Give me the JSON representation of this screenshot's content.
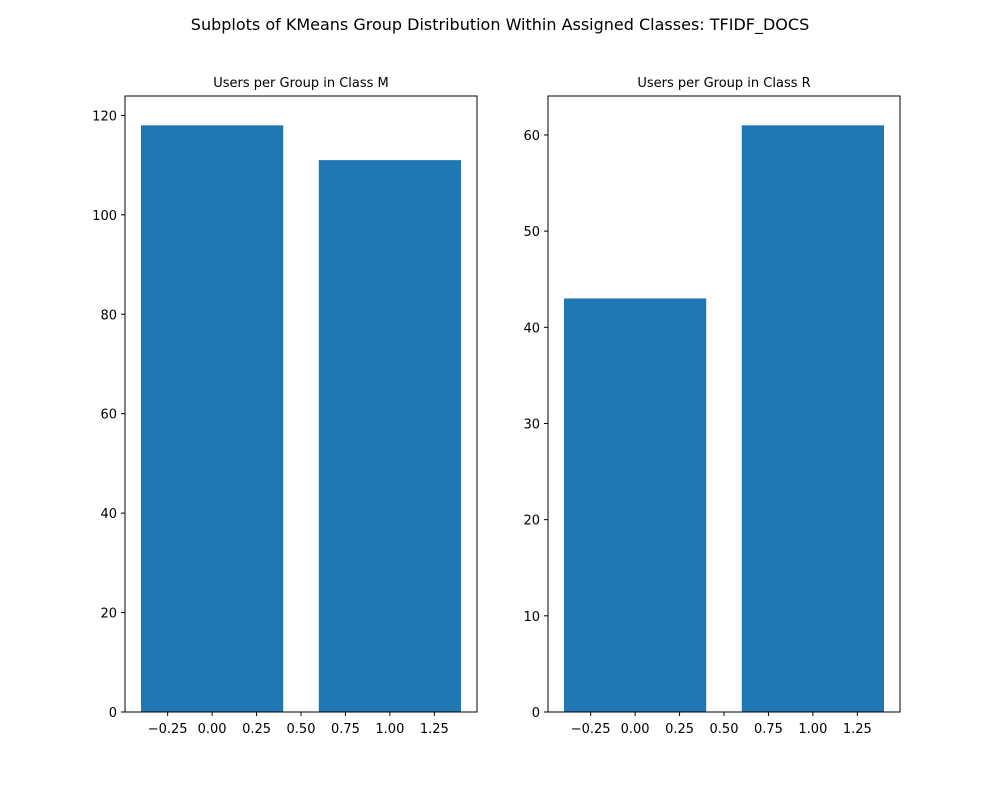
{
  "figure_title": "Subplots of KMeans Group Distribution Within Assigned Classes: TFIDF_DOCS",
  "chart_data": [
    {
      "type": "bar",
      "title": "Users per Group in Class M",
      "xlabel": "",
      "ylabel": "",
      "x": [
        0,
        1
      ],
      "values": [
        118,
        111
      ],
      "bar_width": 0.8,
      "xlim": [
        -0.49,
        1.49
      ],
      "ylim": [
        0,
        123.9
      ],
      "xticks": [
        -0.25,
        0.0,
        0.25,
        0.5,
        0.75,
        1.0,
        1.25
      ],
      "xtick_labels": [
        "−0.25",
        "0.00",
        "0.25",
        "0.50",
        "0.75",
        "1.00",
        "1.25"
      ],
      "yticks": [
        0,
        20,
        40,
        60,
        80,
        100,
        120
      ],
      "ytick_labels": [
        "0",
        "20",
        "40",
        "60",
        "80",
        "100",
        "120"
      ],
      "color": "#1f77b4",
      "grid": false,
      "legend": "none"
    },
    {
      "type": "bar",
      "title": "Users per Group in Class R",
      "xlabel": "",
      "ylabel": "",
      "x": [
        0,
        1
      ],
      "values": [
        43,
        61
      ],
      "bar_width": 0.8,
      "xlim": [
        -0.49,
        1.49
      ],
      "ylim": [
        0,
        64.05
      ],
      "xticks": [
        -0.25,
        0.0,
        0.25,
        0.5,
        0.75,
        1.0,
        1.25
      ],
      "xtick_labels": [
        "−0.25",
        "0.00",
        "0.25",
        "0.50",
        "0.75",
        "1.00",
        "1.25"
      ],
      "yticks": [
        0,
        10,
        20,
        30,
        40,
        50,
        60
      ],
      "ytick_labels": [
        "0",
        "10",
        "20",
        "30",
        "40",
        "50",
        "60"
      ],
      "color": "#1f77b4",
      "grid": false,
      "legend": "none"
    }
  ]
}
